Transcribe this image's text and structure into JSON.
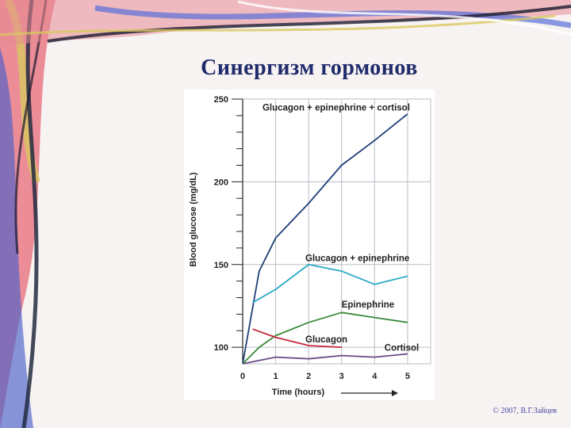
{
  "slide": {
    "title": "Синергизм гормонов",
    "copyright": "© 2007, В.Г.Зайцев"
  },
  "colors": {
    "title": "#1f2a6b",
    "grid": "#b9bec6",
    "glucagon_epinephrine_cortisol": "#1f3f78",
    "glucagon_epinephrine": "#2aa8c8",
    "epinephrine": "#3a8a3a",
    "glucagon": "#c8283c",
    "cortisol": "#6a4a86"
  },
  "chart_data": {
    "type": "line",
    "xlabel": "Time (hours)",
    "ylabel": "Blood glucose (mg/dL)",
    "xlim": [
      0,
      5.7
    ],
    "ylim": [
      90,
      250
    ],
    "x_ticks": [
      0,
      1,
      2,
      3,
      4,
      5
    ],
    "y_ticks": [
      100,
      150,
      200,
      250
    ],
    "grid": true,
    "series": [
      {
        "name": "Glucagon + epinephrine + cortisol",
        "color_key": "glucagon_epinephrine_cortisol",
        "x": [
          0,
          0.5,
          1,
          2,
          3,
          4,
          5
        ],
        "y": [
          90,
          146,
          166,
          187,
          210,
          225,
          241
        ]
      },
      {
        "name": "Glucagon + epinephrine",
        "color_key": "glucagon_epinephrine",
        "x": [
          0.3,
          1,
          2,
          3,
          4,
          5
        ],
        "y": [
          127,
          135,
          150,
          146,
          138,
          143
        ]
      },
      {
        "name": "Epinephrine",
        "color_key": "epinephrine",
        "x": [
          0,
          0.5,
          1,
          2,
          3,
          4,
          5
        ],
        "y": [
          90,
          100,
          107,
          115,
          121,
          118,
          115
        ]
      },
      {
        "name": "Glucagon",
        "color_key": "glucagon",
        "x": [
          0.3,
          1,
          2,
          3
        ],
        "y": [
          111,
          106,
          101,
          100
        ]
      },
      {
        "name": "Cortisol",
        "color_key": "cortisol",
        "x": [
          0,
          1,
          2,
          3,
          4,
          5
        ],
        "y": [
          90,
          94,
          93,
          95,
          94,
          96
        ]
      }
    ],
    "annotations": [
      {
        "text": "Glucagon + epinephrine + cortisol",
        "x": 0.6,
        "y": 243
      },
      {
        "text": "Glucagon + epinephrine",
        "x": 1.9,
        "y": 152
      },
      {
        "text": "Epinephrine",
        "x": 3.0,
        "y": 124
      },
      {
        "text": "Glucagon",
        "x": 1.9,
        "y": 103
      },
      {
        "text": "Cortisol",
        "x": 4.3,
        "y": 98
      }
    ]
  }
}
